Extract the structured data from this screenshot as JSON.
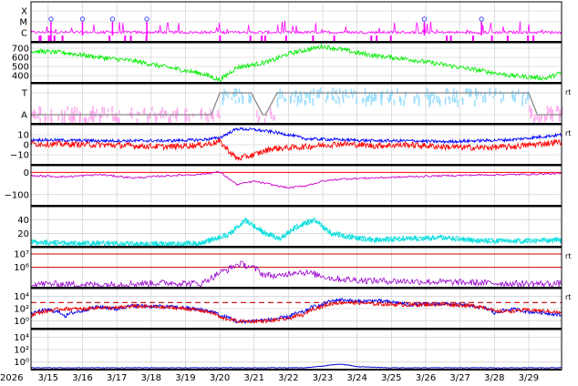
{
  "chart_data": [
    {
      "type": "line",
      "panel": "xray-flares",
      "color": "#ff00ff",
      "y_tick_labels": [
        "X",
        "M",
        "C"
      ],
      "flare_markers_x": [
        "3/15 02:00",
        "3/16 00:00",
        "3/16 21:00",
        "3/17 21:00",
        "3/25 23:00",
        "3/27 15:00"
      ],
      "marker_color": "#4444ff"
    },
    {
      "type": "line",
      "panel": "solar-wind-speed",
      "color": "#00ee00",
      "y_tick_labels": [
        "700",
        "600",
        "500",
        "400"
      ],
      "ylim": [
        320,
        760
      ],
      "x": [
        "3/14 12:00",
        "3/15 12:00",
        "3/16 12:00",
        "3/17 12:00",
        "3/18 12:00",
        "3/19 12:00",
        "3/20 00:00",
        "3/20 12:00",
        "3/21 00:00",
        "3/21 12:00",
        "3/22 00:00",
        "3/22 12:00",
        "3/23 00:00",
        "3/23 12:00",
        "3/24 00:00",
        "3/24 12:00",
        "3/25 12:00",
        "3/26 12:00",
        "3/27 12:00",
        "3/28 12:00",
        "3/29 12:00",
        "3/29 23:00"
      ],
      "values": [
        670,
        650,
        600,
        560,
        490,
        420,
        350,
        490,
        520,
        560,
        640,
        680,
        720,
        690,
        650,
        620,
        580,
        520,
        460,
        400,
        370,
        430
      ]
    },
    {
      "type": "line",
      "panel": "imf-sector",
      "y_tick_labels": [
        "T",
        "A"
      ],
      "side_label": "rt",
      "toward_color": "#99ddff",
      "away_color": "#ffaaee",
      "step_color": "#888888",
      "step_x": [
        "3/14 12:00",
        "3/19 18:00",
        "3/20 00:00",
        "3/20 22:00",
        "3/21 06:00",
        "3/21 08:00",
        "3/21 16:00",
        "3/29 00:00",
        "3/29 06:00",
        "3/29 23:00"
      ],
      "step_values": [
        "A",
        "A",
        "T",
        "T",
        "A",
        "A",
        "T",
        "T",
        "A",
        "A"
      ]
    },
    {
      "type": "line",
      "panel": "imf-components",
      "y_tick_labels": [
        "10",
        "0",
        "−10"
      ],
      "side_label": "rt",
      "ylim": [
        -20,
        20
      ],
      "series": [
        {
          "color": "#0000ff",
          "x": [
            "3/14 12:00",
            "3/16 12:00",
            "3/18 12:00",
            "3/19 12:00",
            "3/20 00:00",
            "3/20 12:00",
            "3/21 00:00",
            "3/21 12:00",
            "3/22 00:00",
            "3/22 12:00",
            "3/23 12:00",
            "3/24 12:00",
            "3/25 12:00",
            "3/26 12:00",
            "3/27 12:00",
            "3/28 12:00",
            "3/29 23:00"
          ],
          "values": [
            5,
            4,
            4,
            5,
            7,
            16,
            15,
            13,
            10,
            6,
            5,
            4,
            4,
            3,
            4,
            5,
            10
          ]
        },
        {
          "color": "#ff0000",
          "x": [
            "3/14 12:00",
            "3/16 12:00",
            "3/18 12:00",
            "3/19 12:00",
            "3/20 00:00",
            "3/20 12:00",
            "3/21 00:00",
            "3/21 12:00",
            "3/22 00:00",
            "3/22 12:00",
            "3/23 12:00",
            "3/24 12:00",
            "3/25 12:00",
            "3/26 12:00",
            "3/27 12:00",
            "3/28 12:00",
            "3/29 23:00"
          ],
          "values": [
            1,
            0,
            -2,
            0,
            3,
            -14,
            -10,
            -4,
            -3,
            -2,
            1,
            -1,
            0,
            -2,
            -3,
            -2,
            3
          ]
        }
      ]
    },
    {
      "type": "line",
      "panel": "dst-index",
      "color": "#cc00cc",
      "y_tick_labels": [
        "0",
        "−100"
      ],
      "ylim": [
        -150,
        30
      ],
      "baseline_color": "#ff0000",
      "x": [
        "3/14 12:00",
        "3/15 12:00",
        "3/16 12:00",
        "3/17 12:00",
        "3/18 12:00",
        "3/19 12:00",
        "3/20 00:00",
        "3/20 12:00",
        "3/21 00:00",
        "3/21 12:00",
        "3/22 00:00",
        "3/22 12:00",
        "3/23 00:00",
        "3/23 12:00",
        "3/24 12:00",
        "3/25 12:00",
        "3/26 12:00",
        "3/27 12:00",
        "3/28 12:00",
        "3/29 23:00"
      ],
      "values": [
        -15,
        -20,
        -10,
        -25,
        -15,
        -8,
        2,
        -55,
        -40,
        -55,
        -70,
        -60,
        -40,
        -30,
        -25,
        -20,
        -15,
        -12,
        -10,
        -5
      ]
    },
    {
      "type": "line",
      "panel": "density",
      "color": "#00dddd",
      "y_tick_labels": [
        "40",
        "20"
      ],
      "ylim": [
        0,
        60
      ],
      "x": [
        "3/14 12:00",
        "3/15 12:00",
        "3/16 12:00",
        "3/17 12:00",
        "3/18 12:00",
        "3/19 12:00",
        "3/19 18:00",
        "3/20 06:00",
        "3/20 18:00",
        "3/21 06:00",
        "3/21 18:00",
        "3/22 06:00",
        "3/22 18:00",
        "3/23 06:00",
        "3/23 18:00",
        "3/24 12:00",
        "3/25 12:00",
        "3/26 12:00",
        "3/27 12:00",
        "3/28 12:00",
        "3/29 23:00"
      ],
      "values": [
        7,
        5,
        5,
        4,
        4,
        5,
        10,
        18,
        40,
        22,
        12,
        30,
        40,
        20,
        15,
        10,
        12,
        14,
        9,
        8,
        10
      ]
    },
    {
      "type": "line",
      "panel": "temperature",
      "color": "#9900cc",
      "y_tick_labels": [
        "10⁷",
        "10⁶"
      ],
      "y_tick_values": [
        10000000,
        1000000
      ],
      "ylim": [
        30000,
        30000000
      ],
      "side_label": "rt",
      "reference_line_color": "#cc0000",
      "x": [
        "3/14 12:00",
        "3/16 12:00",
        "3/18 12:00",
        "3/19 12:00",
        "3/19 20:00",
        "3/20 06:00",
        "3/20 14:00",
        "3/20 20:00",
        "3/21 06:00",
        "3/21 18:00",
        "3/22 06:00",
        "3/22 18:00",
        "3/23 06:00",
        "3/23 18:00",
        "3/24 12:00",
        "3/25 12:00",
        "3/26 12:00",
        "3/27 12:00",
        "3/28 12:00",
        "3/29 23:00"
      ],
      "values": [
        60000,
        50000,
        70000,
        60000,
        200000,
        700000,
        1800000,
        1200000,
        300000,
        200000,
        500000,
        300000,
        150000,
        120000,
        100000,
        90000,
        80000,
        70000,
        60000,
        60000
      ]
    },
    {
      "type": "line",
      "panel": "electron-flux",
      "y_tick_labels": [
        "10⁴",
        "10²",
        "10⁰"
      ],
      "y_tick_values": [
        10000,
        100,
        1
      ],
      "ylim": [
        0.05,
        200000
      ],
      "side_label": "rt",
      "threshold_value": 1000,
      "threshold_color": "#cc0000",
      "series": [
        {
          "color": "#0000ee",
          "x": [
            "3/14 12:00",
            "3/15 00:00",
            "3/15 12:00",
            "3/16 00:00",
            "3/16 12:00",
            "3/17 00:00",
            "3/17 12:00",
            "3/18 12:00",
            "3/19 12:00",
            "3/20 00:00",
            "3/20 12:00",
            "3/21 00:00",
            "3/21 12:00",
            "3/22 00:00",
            "3/22 12:00",
            "3/23 00:00",
            "3/23 12:00",
            "3/24 00:00",
            "3/24 12:00",
            "3/25 12:00",
            "3/26 12:00",
            "3/27 12:00",
            "3/28 00:00",
            "3/28 12:00",
            "3/29 00:00",
            "3/29 23:00"
          ],
          "values": [
            10,
            60,
            5,
            40,
            200,
            80,
            300,
            200,
            60,
            6,
            0.5,
            1,
            1.5,
            4,
            30,
            400,
            3000,
            1500,
            2000,
            400,
            600,
            200,
            15,
            80,
            30,
            8
          ]
        },
        {
          "color": "#ee0000",
          "x": [
            "3/14 12:00",
            "3/15 00:00",
            "3/15 12:00",
            "3/16 00:00",
            "3/16 12:00",
            "3/17 00:00",
            "3/17 12:00",
            "3/18 12:00",
            "3/19 12:00",
            "3/20 00:00",
            "3/20 12:00",
            "3/21 00:00",
            "3/21 12:00",
            "3/22 00:00",
            "3/22 12:00",
            "3/23 00:00",
            "3/23 12:00",
            "3/24 00:00",
            "3/24 12:00",
            "3/25 12:00",
            "3/26 12:00",
            "3/27 12:00",
            "3/28 00:00",
            "3/28 12:00",
            "3/29 00:00",
            "3/29 23:00"
          ],
          "values": [
            6,
            40,
            100,
            80,
            150,
            120,
            250,
            150,
            40,
            3,
            0.8,
            0.8,
            1,
            2,
            10,
            200,
            1000,
            900,
            600,
            400,
            500,
            250,
            30,
            40,
            60,
            20
          ]
        }
      ]
    },
    {
      "type": "line",
      "panel": "proton-flux",
      "color": "#0000cc",
      "y_tick_labels": [
        "10⁴",
        "10²",
        "10⁰"
      ],
      "y_tick_values": [
        10000,
        100,
        1
      ],
      "ylim": [
        0.05,
        200000
      ],
      "x": [
        "3/14 12:00",
        "3/18 12:00",
        "3/22 12:00",
        "3/23 00:00",
        "3/23 12:00",
        "3/24 00:00",
        "3/24 12:00",
        "3/25 00:00",
        "3/27 12:00",
        "3/29 23:00"
      ],
      "values": [
        0.1,
        0.1,
        0.1,
        0.18,
        0.4,
        0.15,
        0.12,
        0.1,
        0.1,
        0.1
      ]
    }
  ],
  "x_axis": {
    "start_label": "2026",
    "tick_labels": [
      "3/15",
      "3/16",
      "3/17",
      "3/18",
      "3/19",
      "3/20",
      "3/21",
      "3/22",
      "3/23",
      "3/24",
      "3/25",
      "3/26",
      "3/27",
      "3/28",
      "3/29"
    ],
    "range": [
      "3/14 12:00",
      "3/29 23:00"
    ]
  }
}
